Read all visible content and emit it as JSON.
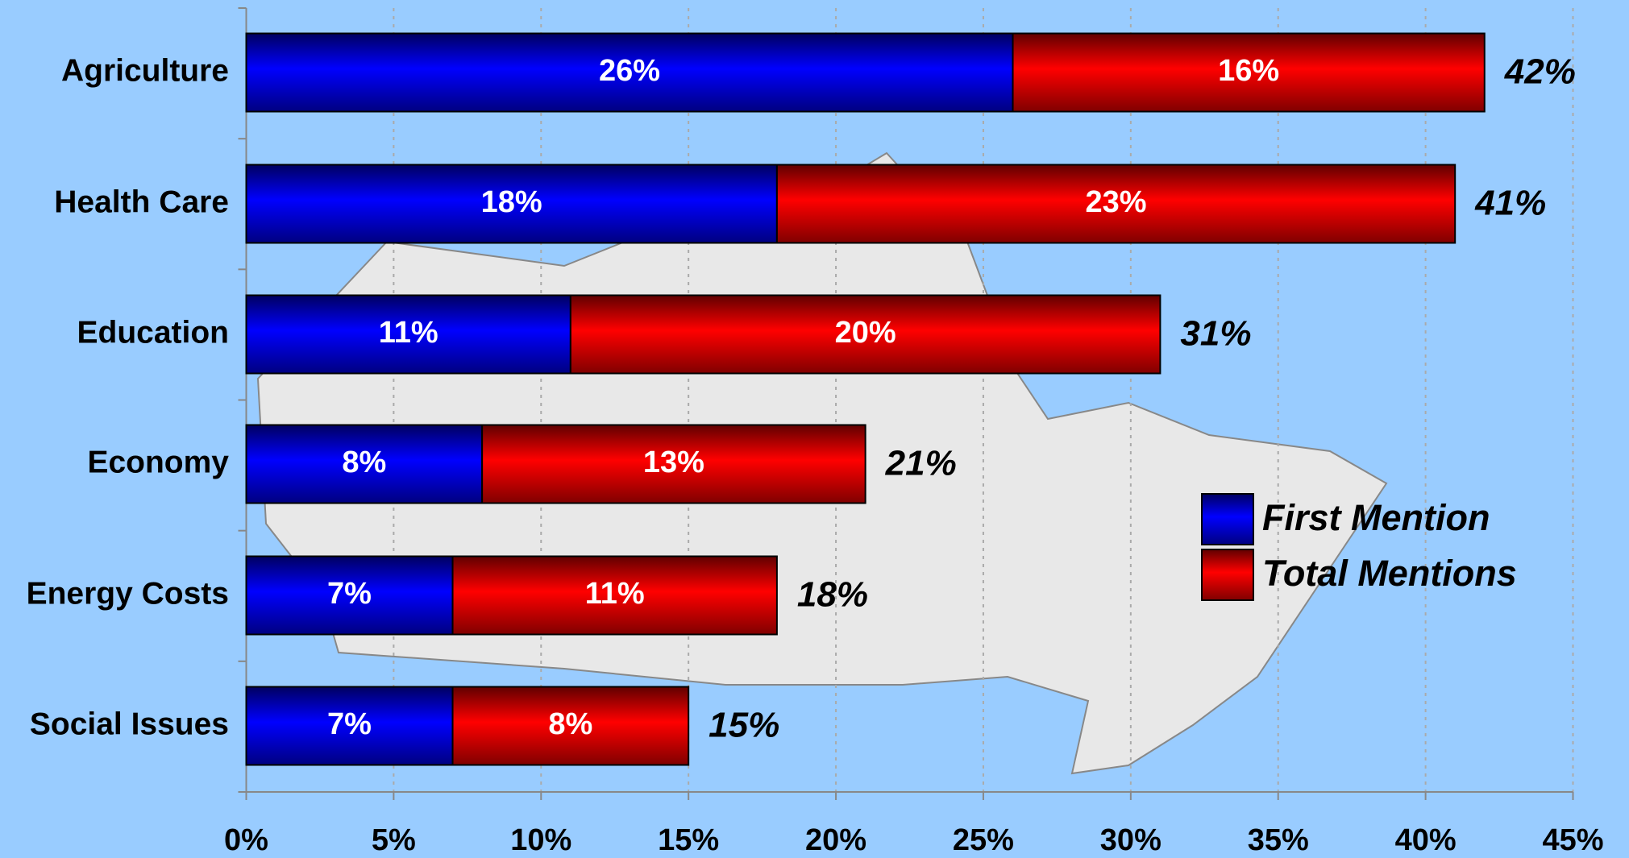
{
  "chart_data": {
    "type": "stacked_barh",
    "categories": [
      "Agriculture",
      "Health Care",
      "Education",
      "Economy",
      "Energy Costs",
      "Social Issues"
    ],
    "series": [
      {
        "name": "First Mention",
        "color": "#0000ff",
        "values": [
          26,
          18,
          11,
          8,
          7,
          7
        ],
        "value_labels": [
          "26%",
          "18%",
          "11%",
          "8%",
          "7%",
          "7%"
        ]
      },
      {
        "name": "Total Mentions",
        "color": "#ff0000",
        "values": [
          16,
          23,
          20,
          13,
          11,
          8
        ],
        "value_labels": [
          "16%",
          "23%",
          "20%",
          "13%",
          "11%",
          "8%"
        ]
      }
    ],
    "totals": [
      42,
      41,
      31,
      21,
      18,
      15
    ],
    "total_labels": [
      "42%",
      "41%",
      "31%",
      "21%",
      "18%",
      "15%"
    ],
    "xlim": [
      0,
      45
    ],
    "xticks": [
      {
        "value": 0,
        "label": "0%"
      },
      {
        "value": 5,
        "label": "5%"
      },
      {
        "value": 10,
        "label": "10%"
      },
      {
        "value": 15,
        "label": "15%"
      },
      {
        "value": 20,
        "label": "20%"
      },
      {
        "value": 25,
        "label": "25%"
      },
      {
        "value": 30,
        "label": "30%"
      },
      {
        "value": 35,
        "label": "35%"
      },
      {
        "value": 40,
        "label": "40%"
      },
      {
        "value": 45,
        "label": "45%"
      }
    ],
    "grid": true,
    "legend": "right"
  }
}
